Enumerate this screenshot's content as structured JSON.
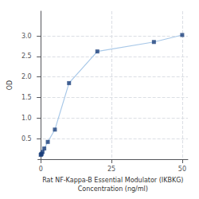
{
  "chart_data": {
    "type": "line",
    "x_label": "Rat NF-Kappa-B Essential Modulator (IKBKG)\nConcentration (ng/ml)",
    "y_label": "OD",
    "x": [
      0,
      0.156,
      0.313,
      0.625,
      1.25,
      2.5,
      5,
      10,
      20,
      40,
      50
    ],
    "series": [
      {
        "type": "line",
        "color": "#a8c8e8",
        "values": [
          0.105,
          0.118,
          0.132,
          0.175,
          0.26,
          0.42,
          0.72,
          1.85,
          2.62,
          2.85,
          3.02
        ]
      },
      {
        "type": "scatter",
        "color": "#1a3f7a",
        "marker": "square",
        "values": [
          0.105,
          0.118,
          0.132,
          0.175,
          0.26,
          0.42,
          0.72,
          1.85,
          2.62,
          2.85,
          3.02
        ]
      }
    ],
    "xlim": [
      -1,
      52
    ],
    "ylim": [
      0,
      3.6
    ],
    "xticks": [
      0,
      25,
      50
    ],
    "yticks": [
      0.5,
      {
        "value": 1.0,
        "label": "1.0"
      },
      1.5,
      {
        "value": 2.0,
        "label": "2.0"
      },
      2.5,
      {
        "value": 3.0,
        "label": "3.0"
      }
    ],
    "grid": true
  }
}
